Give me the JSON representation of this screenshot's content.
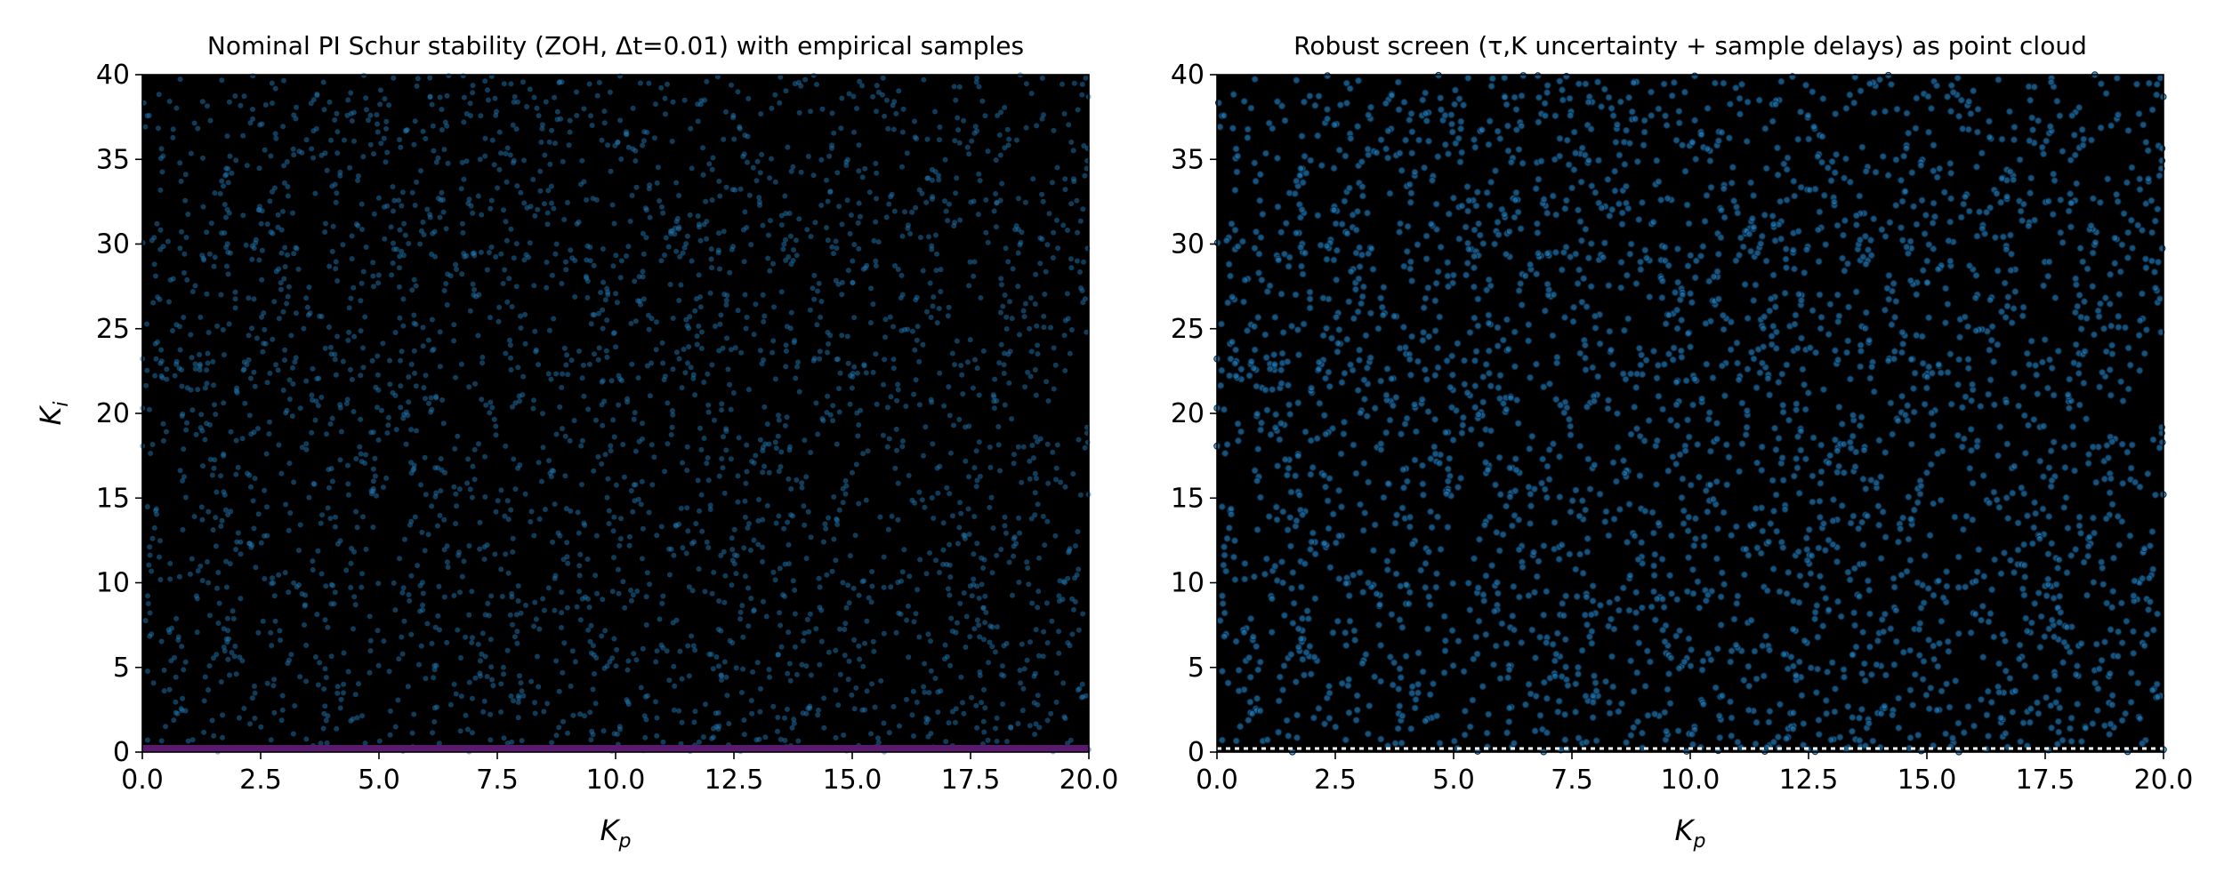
{
  "figure": {
    "panels": [
      {
        "title": "Nominal PI Schur stability (ZOH, Δt=0.01) with empirical samples",
        "xlabel_main": "K",
        "xlabel_sub": "p",
        "ylabel_main": "K",
        "ylabel_sub": "i"
      },
      {
        "title": "Robust screen (τ,K uncertainty + sample delays) as point cloud",
        "xlabel_main": "K",
        "xlabel_sub": "p",
        "ylabel_main": "",
        "ylabel_sub": ""
      }
    ]
  },
  "colors": {
    "background": "#000000",
    "points": "#1f77b4",
    "nominal_boundary": "#5a1a6e",
    "robust_boundary": "#ffffff"
  },
  "chart_data": [
    {
      "type": "scatter",
      "title": "Nominal PI Schur stability (ZOH, Δt=0.01) with empirical samples",
      "xlabel": "K_p",
      "ylabel": "K_i",
      "xlim": [
        0,
        20
      ],
      "ylim": [
        0,
        40
      ],
      "xticks": [
        "0.0",
        "2.5",
        "5.0",
        "7.5",
        "10.0",
        "12.5",
        "15.0",
        "17.5",
        "20.0"
      ],
      "yticks": [
        "0",
        "5",
        "10",
        "15",
        "20",
        "25",
        "30",
        "35",
        "40"
      ],
      "grid": false,
      "background": "black (stability region map)",
      "points": {
        "description": "approximately uniform random samples over Kp in [0,20], Ki in [0,40]",
        "approx_count": 3000,
        "color": "#1f77b4",
        "alpha": 0.5
      },
      "boundary": {
        "description": "thin purple band along Ki ≈ 0 to 0.3",
        "y": 0.25
      }
    },
    {
      "type": "scatter",
      "title": "Robust screen (τ,K uncertainty + sample delays) as point cloud",
      "xlabel": "K_p",
      "ylabel": "",
      "xlim": [
        0,
        20
      ],
      "ylim": [
        0,
        40
      ],
      "xticks": [
        "0.0",
        "2.5",
        "5.0",
        "7.5",
        "10.0",
        "12.5",
        "15.0",
        "17.5",
        "20.0"
      ],
      "yticks": [
        "0",
        "5",
        "10",
        "15",
        "20",
        "25",
        "30",
        "35",
        "40"
      ],
      "grid": false,
      "background": "black",
      "points": {
        "description": "approximately uniform random samples over Kp in [0,20], Ki in [0,40], drawn with dark edge outline",
        "approx_count": 3000,
        "color": "#1f77b4",
        "alpha": 0.7
      },
      "boundary": {
        "description": "white dotted line along Ki ≈ 0.2",
        "y": 0.2
      }
    }
  ]
}
